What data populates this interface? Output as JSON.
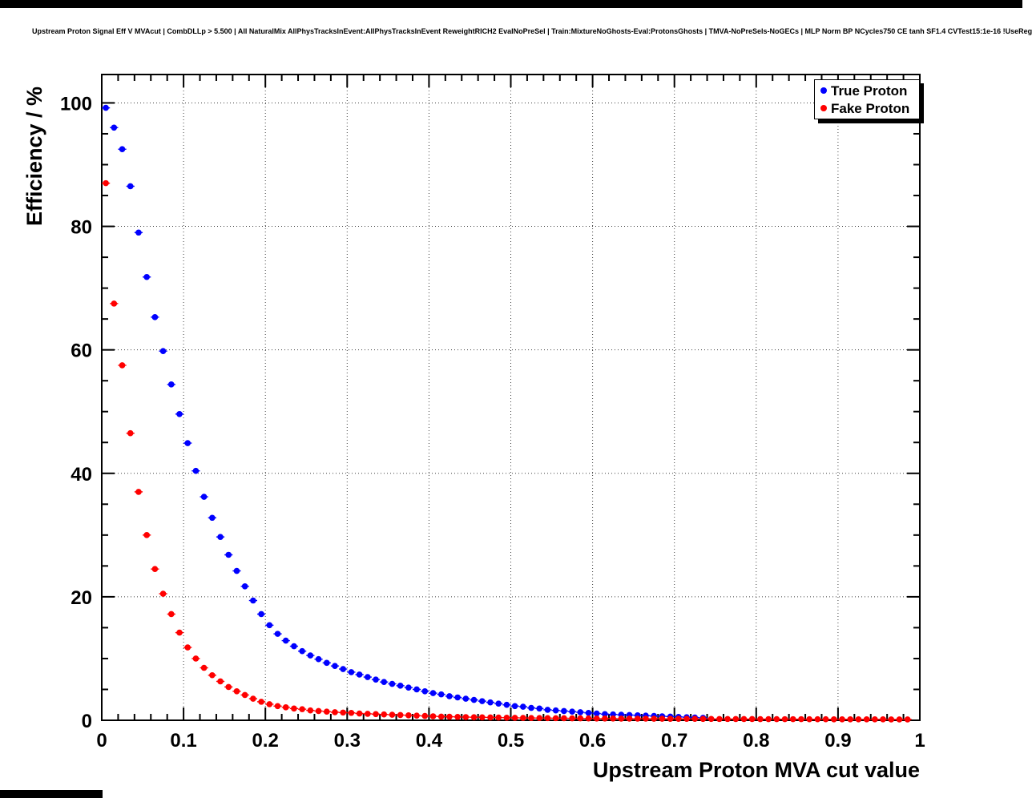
{
  "window": {
    "top_bar": "",
    "bottom_bar": ""
  },
  "chart_data": {
    "type": "scatter",
    "title": "Upstream Proton Signal Eff V MVAcut | CombDLLp > 5.500 | All NaturalMix AllPhysTracksInEvent:AllPhysTracksInEvent ReweightRICH2 EvalNoPreSel | Train:MixtureNoGhosts-Eval:ProtonsGhosts | TMVA-NoPreSels-NoGECs | MLP Norm BP NCycles750 CE tanh SF1.4 CVTest15:1e-16 !UseReg",
    "xlabel": "Upstream Proton MVA cut value",
    "ylabel": "Efficiency / %",
    "xlim": [
      0,
      1
    ],
    "ylim": [
      0,
      104.6
    ],
    "grid": true,
    "x_ticks": [
      0,
      0.1,
      0.2,
      0.3,
      0.4,
      0.5,
      0.6,
      0.7,
      0.8,
      0.9,
      1
    ],
    "x_tick_labels": [
      "0",
      "0.1",
      "0.2",
      "0.3",
      "0.4",
      "0.5",
      "0.6",
      "0.7",
      "0.8",
      "0.9",
      "1"
    ],
    "x_minor_step": 0.02,
    "y_ticks": [
      0,
      20,
      40,
      60,
      80,
      100
    ],
    "y_tick_labels": [
      "0",
      "20",
      "40",
      "60",
      "80",
      "100"
    ],
    "y_minor_step": 5,
    "legend": {
      "position": "top-right"
    },
    "series": [
      {
        "name": "True Proton",
        "color": "#0000ff",
        "x": [
          0.005,
          0.015,
          0.025,
          0.035,
          0.045,
          0.055,
          0.065,
          0.075,
          0.085,
          0.095,
          0.105,
          0.115,
          0.125,
          0.135,
          0.145,
          0.155,
          0.165,
          0.175,
          0.185,
          0.195,
          0.205,
          0.215,
          0.225,
          0.235,
          0.245,
          0.255,
          0.265,
          0.275,
          0.285,
          0.295,
          0.305,
          0.315,
          0.325,
          0.335,
          0.345,
          0.355,
          0.365,
          0.375,
          0.385,
          0.395,
          0.405,
          0.415,
          0.425,
          0.435,
          0.445,
          0.455,
          0.465,
          0.475,
          0.485,
          0.495,
          0.505,
          0.515,
          0.525,
          0.535,
          0.545,
          0.555,
          0.565,
          0.575,
          0.585,
          0.595,
          0.605,
          0.615,
          0.625,
          0.635,
          0.645,
          0.655,
          0.665,
          0.675,
          0.685,
          0.695,
          0.705,
          0.715,
          0.725,
          0.735
        ],
        "y": [
          99.2,
          96.0,
          92.5,
          86.5,
          79.0,
          71.8,
          65.3,
          59.8,
          54.4,
          49.6,
          44.9,
          40.4,
          36.2,
          32.8,
          29.7,
          26.8,
          24.2,
          21.7,
          19.4,
          17.2,
          15.4,
          14.0,
          12.9,
          12.0,
          11.2,
          10.5,
          9.9,
          9.3,
          8.8,
          8.3,
          7.8,
          7.4,
          7.0,
          6.6,
          6.2,
          5.9,
          5.6,
          5.3,
          5.0,
          4.7,
          4.4,
          4.2,
          3.9,
          3.7,
          3.5,
          3.3,
          3.1,
          2.9,
          2.7,
          2.5,
          2.3,
          2.2,
          2.0,
          1.9,
          1.7,
          1.6,
          1.5,
          1.4,
          1.3,
          1.2,
          1.1,
          1.0,
          0.95,
          0.9,
          0.85,
          0.8,
          0.75,
          0.7,
          0.65,
          0.6,
          0.55,
          0.5,
          0.45,
          0.4
        ]
      },
      {
        "name": "Fake Proton",
        "color": "#ff0000",
        "x": [
          0.005,
          0.015,
          0.025,
          0.035,
          0.045,
          0.055,
          0.065,
          0.075,
          0.085,
          0.095,
          0.105,
          0.115,
          0.125,
          0.135,
          0.145,
          0.155,
          0.165,
          0.175,
          0.185,
          0.195,
          0.205,
          0.215,
          0.225,
          0.235,
          0.245,
          0.255,
          0.265,
          0.275,
          0.285,
          0.295,
          0.305,
          0.315,
          0.325,
          0.335,
          0.345,
          0.355,
          0.365,
          0.375,
          0.385,
          0.395,
          0.405,
          0.415,
          0.425,
          0.435,
          0.445,
          0.455,
          0.465,
          0.475,
          0.485,
          0.495,
          0.505,
          0.515,
          0.525,
          0.535,
          0.545,
          0.555,
          0.565,
          0.575,
          0.585,
          0.595,
          0.605,
          0.615,
          0.625,
          0.635,
          0.645,
          0.655,
          0.665,
          0.675,
          0.685,
          0.695,
          0.705,
          0.715,
          0.725,
          0.735,
          0.745,
          0.755,
          0.765,
          0.775,
          0.785,
          0.795,
          0.805,
          0.815,
          0.825,
          0.835,
          0.845,
          0.855,
          0.865,
          0.875,
          0.885,
          0.895,
          0.905,
          0.915,
          0.925,
          0.935,
          0.945,
          0.955,
          0.965,
          0.975,
          0.985
        ],
        "y": [
          87.0,
          67.5,
          57.5,
          46.5,
          37.0,
          30.0,
          24.5,
          20.5,
          17.2,
          14.2,
          11.8,
          10.0,
          8.5,
          7.3,
          6.3,
          5.4,
          4.7,
          4.1,
          3.5,
          3.0,
          2.6,
          2.3,
          2.1,
          1.9,
          1.8,
          1.6,
          1.5,
          1.4,
          1.3,
          1.25,
          1.2,
          1.1,
          1.05,
          1.0,
          0.95,
          0.9,
          0.85,
          0.8,
          0.75,
          0.7,
          0.65,
          0.6,
          0.58,
          0.55,
          0.52,
          0.5,
          0.48,
          0.46,
          0.44,
          0.42,
          0.4,
          0.38,
          0.37,
          0.36,
          0.35,
          0.34,
          0.33,
          0.32,
          0.31,
          0.3,
          0.29,
          0.28,
          0.28,
          0.27,
          0.27,
          0.26,
          0.26,
          0.25,
          0.25,
          0.24,
          0.24,
          0.23,
          0.23,
          0.22,
          0.22,
          0.21,
          0.21,
          0.2,
          0.2,
          0.2,
          0.19,
          0.19,
          0.19,
          0.18,
          0.18,
          0.18,
          0.17,
          0.17,
          0.17,
          0.16,
          0.16,
          0.16,
          0.15,
          0.15,
          0.15,
          0.15,
          0.14,
          0.14,
          0.14
        ]
      }
    ],
    "style": {
      "frame_color": "#000000",
      "grid_color": "#000000",
      "legend_shadow_color": "#000000"
    }
  }
}
